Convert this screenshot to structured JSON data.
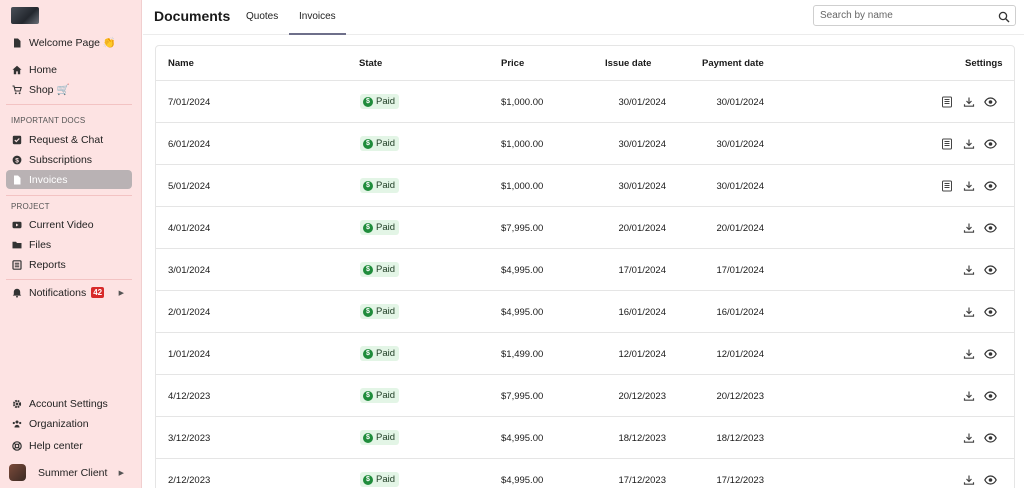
{
  "sidebar": {
    "welcome": "Welcome Page 👏",
    "home": "Home",
    "shop": "Shop 🛒",
    "section_docs": "IMPORTANT DOCS",
    "request_chat": "Request & Chat",
    "subscriptions": "Subscriptions",
    "invoices": "Invoices",
    "section_project": "PROJECT",
    "current_video": "Current Video",
    "files": "Files",
    "reports": "Reports",
    "notifications": "Notifications",
    "notifications_count": "42",
    "account_settings": "Account Settings",
    "organization": "Organization",
    "help_center": "Help center",
    "user": "Summer Client"
  },
  "header": {
    "title": "Documents",
    "tabs": [
      "Quotes",
      "Invoices"
    ],
    "active_tab": "Invoices",
    "search_placeholder": "Search by name"
  },
  "table": {
    "columns": {
      "name": "Name",
      "state": "State",
      "price": "Price",
      "issue_date": "Issue date",
      "payment_date": "Payment date",
      "settings": "Settings"
    },
    "rows": [
      {
        "name": "7/01/2024",
        "state": "Paid",
        "price": "$1,000.00",
        "issue": "30/01/2024",
        "payment": "30/01/2024",
        "has_doc": true
      },
      {
        "name": "6/01/2024",
        "state": "Paid",
        "price": "$1,000.00",
        "issue": "30/01/2024",
        "payment": "30/01/2024",
        "has_doc": true
      },
      {
        "name": "5/01/2024",
        "state": "Paid",
        "price": "$1,000.00",
        "issue": "30/01/2024",
        "payment": "30/01/2024",
        "has_doc": true
      },
      {
        "name": "4/01/2024",
        "state": "Paid",
        "price": "$7,995.00",
        "issue": "20/01/2024",
        "payment": "20/01/2024",
        "has_doc": false
      },
      {
        "name": "3/01/2024",
        "state": "Paid",
        "price": "$4,995.00",
        "issue": "17/01/2024",
        "payment": "17/01/2024",
        "has_doc": false
      },
      {
        "name": "2/01/2024",
        "state": "Paid",
        "price": "$4,995.00",
        "issue": "16/01/2024",
        "payment": "16/01/2024",
        "has_doc": false
      },
      {
        "name": "1/01/2024",
        "state": "Paid",
        "price": "$1,499.00",
        "issue": "12/01/2024",
        "payment": "12/01/2024",
        "has_doc": false
      },
      {
        "name": "4/12/2023",
        "state": "Paid",
        "price": "$7,995.00",
        "issue": "20/12/2023",
        "payment": "20/12/2023",
        "has_doc": false
      },
      {
        "name": "3/12/2023",
        "state": "Paid",
        "price": "$4,995.00",
        "issue": "18/12/2023",
        "payment": "18/12/2023",
        "has_doc": false
      },
      {
        "name": "2/12/2023",
        "state": "Paid",
        "price": "$4,995.00",
        "issue": "17/12/2023",
        "payment": "17/12/2023",
        "has_doc": false
      }
    ]
  },
  "colors": {
    "sidebar_bg": "#fde3e3",
    "active_nav": "#b9b2b4",
    "paid_green": "#1f8c3b",
    "paid_bg": "#e3f5e6",
    "badge_red": "#d72a2a"
  }
}
